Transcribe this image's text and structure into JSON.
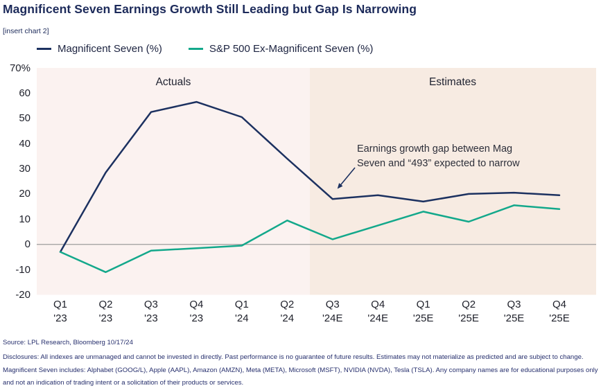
{
  "title": "Magnificent Seven Earnings Growth Still Leading but Gap Is Narrowing",
  "insert_note": "[insert chart 2]",
  "annotation": {
    "line1": "Earnings growth gap between Mag",
    "line2": "Seven and “493” expected to narrow"
  },
  "colors": {
    "mag7_line": "#1c3160",
    "ex_mag7_line": "#13a88b",
    "actuals_bg": "#fbf2f0",
    "estimates_bg": "#f7ebe2",
    "zero_line": "#9d9d9d",
    "title_navy": "#1c2a5a",
    "footer_navy": "#262f6d"
  },
  "chart_data": {
    "type": "line",
    "categories": [
      "Q1 '23",
      "Q2 '23",
      "Q3 '23",
      "Q4 '23",
      "Q1 '24",
      "Q2 '24",
      "Q3 '24E",
      "Q4 '24E",
      "Q1 '25E",
      "Q2 '25E",
      "Q3 '25E",
      "Q4 '25E"
    ],
    "series": [
      {
        "name": "Magnificent Seven (%)",
        "color": "#1c3160",
        "values": [
          -3,
          28.5,
          52.5,
          56.5,
          50.5,
          34,
          18,
          19.5,
          17,
          20,
          20.5,
          19.5
        ]
      },
      {
        "name": "S&P 500 Ex-Magnificent Seven (%)",
        "color": "#13a88b",
        "values": [
          -3,
          -11,
          -2.5,
          -1.5,
          -0.5,
          9.5,
          2,
          7.5,
          13,
          9,
          15.5,
          14
        ]
      }
    ],
    "ylim": [
      -20,
      70
    ],
    "y_ticks": [
      "70%",
      "60",
      "50",
      "40",
      "30",
      "20",
      "10",
      "0",
      "-10",
      "-20"
    ],
    "regions": [
      {
        "label": "Actuals",
        "from": 0,
        "to": 5
      },
      {
        "label": "Estimates",
        "from": 6,
        "to": 11
      }
    ],
    "legend_position": "top",
    "grid": "zero-line-only"
  },
  "footer": {
    "source": "Source: LPL Research, Bloomberg 10/17/24",
    "disclosures": "Disclosures: All indexes are unmanaged and cannot be invested in directly. Past performance is no guarantee of future results. Estimates may not materialize as predicted and are subject to change. Magnificent Seven includes: Alphabet (GOOG/L), Apple (AAPL), Amazon (AMZN), Meta (META), Microsoft (MSFT), NVIDIA (NVDA), Tesla (TSLA). Any company names are for educational purposes only and not an indication of trading intent or a solicitation of their products or services."
  }
}
